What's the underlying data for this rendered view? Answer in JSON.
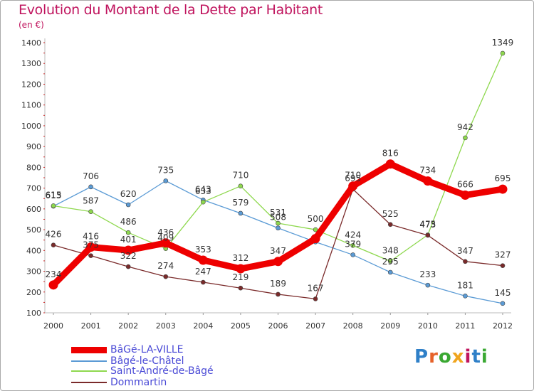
{
  "title": "Evolution du Montant de la Dette par Habitant",
  "unit_label": "(en €)",
  "logo_text": "Proxiti",
  "chart_data": {
    "type": "line",
    "title": "Evolution du Montant de la Dette par Habitant",
    "subtitle": "(en €)",
    "x": [
      "2000",
      "2001",
      "2002",
      "2003",
      "2004",
      "2005",
      "2006",
      "2007",
      "2008",
      "2009",
      "2010",
      "2011",
      "2012"
    ],
    "ylim": [
      100,
      1400
    ],
    "yticks": [
      100,
      200,
      300,
      400,
      500,
      600,
      700,
      800,
      900,
      1000,
      1100,
      1200,
      1300,
      1400
    ],
    "grid": false,
    "legend_position": "bottom-left",
    "series": [
      {
        "name": "BâGé-LA-VILLE",
        "color": "#ee0000",
        "values": [
          234,
          416,
          401,
          436,
          353,
          312,
          347,
          457,
          710,
          816,
          734,
          666,
          695
        ],
        "labels": [
          "234",
          "416",
          "401",
          "436",
          "353",
          "312",
          "347",
          "",
          "710",
          "816",
          "734",
          "666",
          "695"
        ]
      },
      {
        "name": "Bâgé-le-Châtel",
        "color": "#5b9bd5",
        "values": [
          613,
          706,
          620,
          735,
          643,
          579,
          508,
          441,
          379,
          295,
          233,
          181,
          145
        ],
        "labels": [
          "613",
          "706",
          "620",
          "735",
          "643",
          "579",
          "508",
          "",
          "379",
          "295",
          "233",
          "181",
          "145"
        ]
      },
      {
        "name": "Saint-André-de-Bâgé",
        "color": "#8ed84e",
        "values": [
          615,
          587,
          486,
          409,
          633,
          710,
          531,
          500,
          424,
          348,
          475,
          942,
          1349
        ],
        "labels": [
          "615",
          "587",
          "486",
          "409",
          "633",
          "710",
          "531",
          "500",
          "424",
          "348",
          "475",
          "942",
          "1349"
        ]
      },
      {
        "name": "Dommartin",
        "color": "#7a2a2a",
        "values": [
          426,
          375,
          322,
          274,
          247,
          219,
          189,
          167,
          695,
          525,
          473,
          347,
          327
        ],
        "labels": [
          "426",
          "375",
          "322",
          "274",
          "247",
          "219",
          "189",
          "167",
          "695",
          "525",
          "473",
          "347",
          "327"
        ]
      }
    ]
  }
}
